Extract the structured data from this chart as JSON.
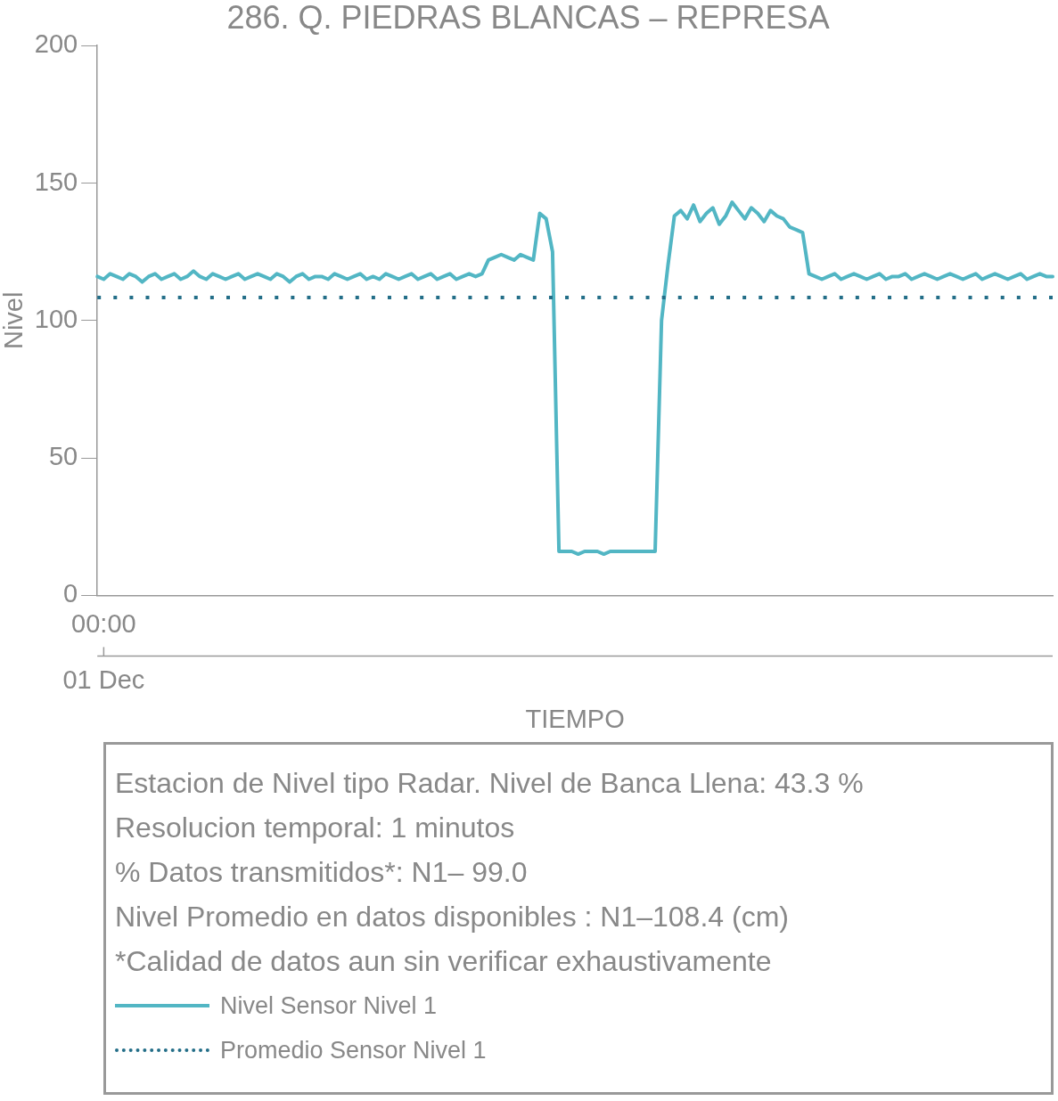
{
  "chart_data": {
    "type": "line",
    "title": "286. Q. PIEDRAS BLANCAS – REPRESA",
    "xlabel": "TIEMPO",
    "ylabel": "Nivel",
    "categories": [
      null,
      "00:00",
      null,
      null,
      null,
      null,
      null,
      null,
      null,
      null,
      null,
      null,
      null,
      null,
      null,
      null,
      null,
      null,
      null,
      null,
      null,
      null,
      null,
      null,
      null,
      null,
      null,
      null,
      null,
      null,
      null,
      null,
      null,
      null,
      null,
      null,
      null,
      null,
      null,
      null,
      null,
      null,
      null,
      null,
      null,
      null,
      null,
      null,
      null,
      null,
      null,
      null,
      null,
      null,
      null,
      null,
      null,
      null,
      null,
      null,
      null,
      null,
      null,
      null,
      null,
      null,
      null,
      null,
      null,
      null,
      null,
      null,
      null,
      null,
      null,
      null,
      null,
      null,
      null,
      null,
      null,
      null,
      null,
      null,
      null,
      null,
      null,
      null,
      null,
      null,
      null,
      null,
      null,
      null,
      null,
      null,
      null,
      null,
      null,
      null,
      null,
      null,
      null,
      null,
      null,
      null,
      null,
      null,
      null,
      null,
      null,
      null,
      null,
      null,
      null,
      null,
      null,
      null,
      null,
      null,
      null,
      null,
      null,
      null,
      null,
      null,
      null,
      null,
      null,
      null,
      null,
      null,
      null,
      null,
      null,
      null,
      null,
      null,
      null,
      null,
      null,
      null,
      null,
      null,
      null,
      null,
      null,
      null,
      null,
      null
    ],
    "series": [
      {
        "name": "Nivel Sensor Nivel 1",
        "color": "#52b6c4",
        "line_style": "solid",
        "values": [
          116,
          115,
          117,
          116,
          115,
          117,
          116,
          114,
          116,
          117,
          115,
          116,
          117,
          115,
          116,
          118,
          116,
          115,
          117,
          116,
          115,
          116,
          117,
          115,
          116,
          117,
          116,
          115,
          117,
          116,
          114,
          116,
          117,
          115,
          116,
          116,
          115,
          117,
          116,
          115,
          116,
          117,
          115,
          116,
          115,
          117,
          116,
          115,
          116,
          117,
          115,
          116,
          117,
          115,
          116,
          117,
          115,
          116,
          117,
          116,
          117,
          122,
          123,
          124,
          123,
          122,
          124,
          123,
          122,
          139,
          137,
          125,
          16,
          16,
          16,
          15,
          16,
          16,
          16,
          15,
          16,
          16,
          16,
          16,
          16,
          16,
          16,
          16,
          100,
          120,
          138,
          140,
          137,
          142,
          136,
          139,
          141,
          135,
          138,
          143,
          140,
          137,
          141,
          139,
          136,
          140,
          138,
          137,
          134,
          133,
          132,
          117,
          116,
          115,
          116,
          117,
          115,
          116,
          117,
          116,
          115,
          116,
          117,
          115,
          116,
          116,
          117,
          115,
          116,
          117,
          116,
          115,
          116,
          117,
          116,
          115,
          116,
          117,
          115,
          116,
          117,
          116,
          115,
          116,
          117,
          115,
          116,
          117,
          116,
          116
        ]
      },
      {
        "name": "Promedio Sensor Nivel 1",
        "color": "#236e88",
        "line_style": "dotted",
        "values": [
          108.4,
          108.4,
          108.4,
          108.4,
          108.4,
          108.4,
          108.4,
          108.4,
          108.4,
          108.4,
          108.4,
          108.4,
          108.4,
          108.4,
          108.4,
          108.4,
          108.4,
          108.4,
          108.4,
          108.4,
          108.4,
          108.4,
          108.4,
          108.4,
          108.4,
          108.4,
          108.4,
          108.4,
          108.4,
          108.4,
          108.4,
          108.4,
          108.4,
          108.4,
          108.4,
          108.4,
          108.4,
          108.4,
          108.4,
          108.4,
          108.4,
          108.4,
          108.4,
          108.4,
          108.4,
          108.4,
          108.4,
          108.4,
          108.4,
          108.4,
          108.4,
          108.4,
          108.4,
          108.4,
          108.4,
          108.4,
          108.4,
          108.4,
          108.4,
          108.4,
          108.4,
          108.4,
          108.4,
          108.4,
          108.4,
          108.4,
          108.4,
          108.4,
          108.4,
          108.4,
          108.4,
          108.4,
          108.4,
          108.4,
          108.4,
          108.4,
          108.4,
          108.4,
          108.4,
          108.4,
          108.4,
          108.4,
          108.4,
          108.4,
          108.4,
          108.4,
          108.4,
          108.4,
          108.4,
          108.4,
          108.4,
          108.4,
          108.4,
          108.4,
          108.4,
          108.4,
          108.4,
          108.4,
          108.4,
          108.4,
          108.4,
          108.4,
          108.4,
          108.4,
          108.4,
          108.4,
          108.4,
          108.4,
          108.4,
          108.4,
          108.4,
          108.4,
          108.4,
          108.4,
          108.4,
          108.4,
          108.4,
          108.4,
          108.4,
          108.4,
          108.4,
          108.4,
          108.4,
          108.4,
          108.4,
          108.4,
          108.4,
          108.4,
          108.4,
          108.4,
          108.4,
          108.4,
          108.4,
          108.4,
          108.4,
          108.4,
          108.4,
          108.4,
          108.4,
          108.4,
          108.4,
          108.4,
          108.4,
          108.4,
          108.4,
          108.4,
          108.4,
          108.4,
          108.4,
          108.4
        ]
      }
    ],
    "ylim": [
      0,
      200
    ],
    "yticks": [
      0,
      50,
      100,
      150,
      200
    ],
    "grid": false,
    "legend": "bottom",
    "marker": "none",
    "annotations": [
      {
        "text": "01 Dec",
        "x": "00:00"
      },
      "Estacion de Nivel tipo Radar. Nivel de Banca Llena: 43.3 %",
      "Resolucion temporal: 1 minutos",
      "% Datos transmitidos*: N1– 99.0",
      "Nivel Promedio en datos disponibles : N1–108.4 (cm)",
      "*Calidad de datos aun sin verificar exhaustivamente"
    ]
  }
}
